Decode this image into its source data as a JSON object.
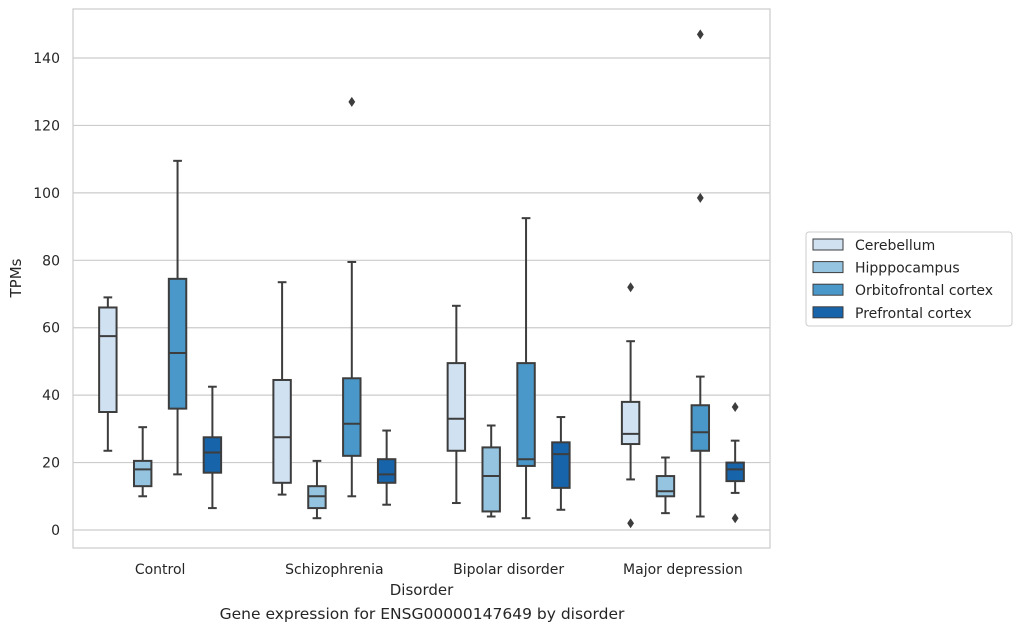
{
  "chart_data": {
    "type": "box",
    "caption": "Gene expression for ENSG00000147649 by disorder",
    "xlabel": "Disorder",
    "ylabel": "TPMs",
    "ylim": [
      -5,
      156
    ],
    "yticks": [
      0,
      20,
      40,
      60,
      80,
      100,
      120,
      140
    ],
    "grid": true,
    "legend_position": "right",
    "categories": [
      "Control",
      "Schizophrenia",
      "Bipolar disorder",
      "Major depression"
    ],
    "series": [
      {
        "name": "Cerebellum",
        "color": "#d0e1f2",
        "boxes": [
          {
            "whisker_low": 23.5,
            "q1": 35,
            "median": 57.5,
            "q3": 66,
            "whisker_high": 69,
            "outliers": []
          },
          {
            "whisker_low": 10.5,
            "q1": 14,
            "median": 27.5,
            "q3": 44.5,
            "whisker_high": 73.5,
            "outliers": []
          },
          {
            "whisker_low": 8,
            "q1": 23.5,
            "median": 33,
            "q3": 49.5,
            "whisker_high": 66.5,
            "outliers": []
          },
          {
            "whisker_low": 15,
            "q1": 25.5,
            "median": 28.5,
            "q3": 38,
            "whisker_high": 56,
            "outliers": [
              72,
              2
            ]
          }
        ]
      },
      {
        "name": "Hipppocampus",
        "color": "#94c4df",
        "boxes": [
          {
            "whisker_low": 10,
            "q1": 13,
            "median": 18,
            "q3": 20.5,
            "whisker_high": 30.5,
            "outliers": []
          },
          {
            "whisker_low": 3.5,
            "q1": 6.5,
            "median": 10,
            "q3": 13,
            "whisker_high": 20.5,
            "outliers": []
          },
          {
            "whisker_low": 4,
            "q1": 5.5,
            "median": 16,
            "q3": 24.5,
            "whisker_high": 31,
            "outliers": []
          },
          {
            "whisker_low": 5,
            "q1": 10,
            "median": 11.5,
            "q3": 16,
            "whisker_high": 21.5,
            "outliers": []
          }
        ]
      },
      {
        "name": "Orbitofrontal cortex",
        "color": "#4a98c9",
        "boxes": [
          {
            "whisker_low": 16.5,
            "q1": 36,
            "median": 52.5,
            "q3": 74.5,
            "whisker_high": 109.5,
            "outliers": []
          },
          {
            "whisker_low": 10,
            "q1": 22,
            "median": 31.5,
            "q3": 45,
            "whisker_high": 79.5,
            "outliers": [
              127
            ]
          },
          {
            "whisker_low": 3.5,
            "q1": 19,
            "median": 21,
            "q3": 49.5,
            "whisker_high": 92.5,
            "outliers": []
          },
          {
            "whisker_low": 4,
            "q1": 23.5,
            "median": 29,
            "q3": 37,
            "whisker_high": 45.5,
            "outliers": [
              147,
              98.5
            ]
          }
        ]
      },
      {
        "name": "Prefrontal cortex",
        "color": "#1764ab",
        "boxes": [
          {
            "whisker_low": 6.5,
            "q1": 17,
            "median": 23,
            "q3": 27.5,
            "whisker_high": 42.5,
            "outliers": []
          },
          {
            "whisker_low": 7.5,
            "q1": 14,
            "median": 16.5,
            "q3": 21,
            "whisker_high": 29.5,
            "outliers": []
          },
          {
            "whisker_low": 6,
            "q1": 12.5,
            "median": 22.5,
            "q3": 26,
            "whisker_high": 33.5,
            "outliers": []
          },
          {
            "whisker_low": 11,
            "q1": 14.5,
            "median": 18,
            "q3": 20,
            "whisker_high": 26.5,
            "outliers": [
              36.5,
              3.5
            ]
          }
        ]
      }
    ]
  }
}
